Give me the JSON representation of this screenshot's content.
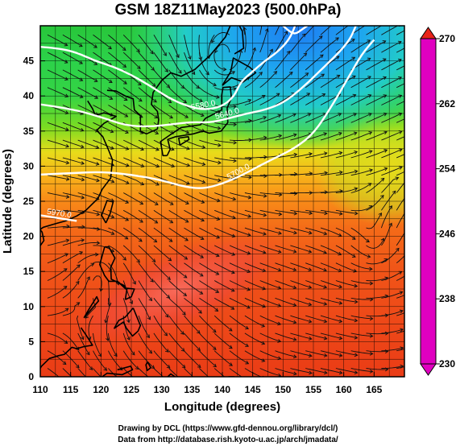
{
  "title": "GSM 18Z11May2023 (500.0hPa)",
  "xlabel": "Longitude (degrees)",
  "ylabel": "Latitude (degrees)",
  "footer": {
    "line1": "Drawing by DCL (https://www.gfd-dennou.org/library/dcl/)",
    "line2": "Data from http://database.rish.kyoto-u.ac.jp/arch/jmadata/"
  },
  "map": {
    "lon_range": [
      110,
      170
    ],
    "lat_range": [
      0,
      50
    ],
    "grid_step_deg": 2.5,
    "x_ticks": [
      "110",
      "115",
      "120",
      "125",
      "130",
      "135",
      "140",
      "145",
      "150",
      "155",
      "160",
      "165"
    ],
    "y_ticks": [
      "0",
      "5",
      "10",
      "15",
      "20",
      "25",
      "30",
      "35",
      "40",
      "45"
    ]
  },
  "colorbar": {
    "labels": [
      "270",
      "262",
      "254",
      "246",
      "238",
      "230"
    ],
    "range": [
      230,
      270
    ],
    "stops": [
      {
        "v": 230,
        "color": "#e000c0"
      },
      {
        "v": 234,
        "color": "#7a1ee6"
      },
      {
        "v": 238,
        "color": "#1a2fe0"
      },
      {
        "v": 242,
        "color": "#1890f0"
      },
      {
        "v": 246,
        "color": "#1cc6d8"
      },
      {
        "v": 250,
        "color": "#24d466"
      },
      {
        "v": 254,
        "color": "#3cd42c"
      },
      {
        "v": 258,
        "color": "#b8e21a"
      },
      {
        "v": 262,
        "color": "#f0d21a"
      },
      {
        "v": 266,
        "color": "#ff6a14"
      },
      {
        "v": 270,
        "color": "#e8241a"
      }
    ]
  },
  "contours": [
    {
      "label": "5970.0",
      "points": [
        [
          110,
          23.0
        ],
        [
          113,
          22.6
        ],
        [
          116,
          22.2
        ]
      ]
    },
    {
      "label": "5700.0",
      "points": [
        [
          110,
          28.8
        ],
        [
          115,
          29.0
        ],
        [
          120,
          29.2
        ],
        [
          125,
          28.8
        ],
        [
          130,
          28.0
        ],
        [
          134,
          27.0
        ],
        [
          137,
          26.8
        ],
        [
          140,
          27.5
        ],
        [
          143,
          28.6
        ],
        [
          146,
          30.0
        ],
        [
          149,
          31.3
        ],
        [
          152,
          32.6
        ],
        [
          155,
          34.6
        ],
        [
          158,
          38.5
        ],
        [
          161,
          43.0
        ],
        [
          163,
          46.0
        ],
        [
          165,
          48.0
        ]
      ]
    },
    {
      "label": "5640.0",
      "points": [
        [
          110,
          38.8
        ],
        [
          115,
          38.2
        ],
        [
          120,
          37.0
        ],
        [
          124,
          35.8
        ],
        [
          128,
          35.6
        ],
        [
          132,
          36.0
        ],
        [
          135,
          36.3
        ],
        [
          138,
          36.2
        ],
        [
          141,
          36.8
        ],
        [
          144,
          37.5
        ],
        [
          147,
          38.0
        ],
        [
          150,
          39.0
        ],
        [
          153,
          41.0
        ],
        [
          156,
          43.5
        ],
        [
          159,
          46.0
        ],
        [
          161,
          48.0
        ],
        [
          162,
          50.0
        ]
      ]
    },
    {
      "label": "5580.0",
      "points": [
        [
          110,
          47.0
        ],
        [
          113,
          46.8
        ],
        [
          116,
          46.2
        ],
        [
          119,
          45.0
        ],
        [
          122,
          44.2
        ],
        [
          125,
          43.0
        ],
        [
          128,
          41.5
        ],
        [
          131,
          39.8
        ],
        [
          134,
          38.6
        ],
        [
          137,
          38.0
        ],
        [
          140,
          38.5
        ],
        [
          142,
          40.0
        ],
        [
          143,
          42.0
        ],
        [
          145,
          43.5
        ],
        [
          147,
          45.0
        ],
        [
          149,
          46.2
        ],
        [
          151,
          48.0
        ],
        [
          152,
          50.0
        ]
      ]
    },
    {
      "label": "",
      "points": [
        [
          150,
          50.0
        ],
        [
          151,
          49.2
        ],
        [
          152,
          48.8
        ],
        [
          153,
          49.4
        ],
        [
          154,
          50.0
        ]
      ]
    }
  ],
  "coast": [
    [
      [
        121,
        40.8
      ],
      [
        122.5,
        40.7
      ],
      [
        124,
        40.0
      ],
      [
        125.3,
        39.6
      ],
      [
        125.5,
        38.0
      ],
      [
        126.5,
        37.2
      ],
      [
        126.5,
        35.0
      ],
      [
        127.5,
        34.6
      ],
      [
        129.3,
        35.3
      ],
      [
        129.5,
        36.6
      ],
      [
        129.3,
        37.8
      ],
      [
        128.3,
        38.8
      ],
      [
        128.6,
        40.5
      ],
      [
        130,
        42.2
      ],
      [
        131.5,
        43.3
      ],
      [
        133.2,
        42.8
      ],
      [
        135.5,
        43.8
      ],
      [
        138,
        45.8
      ],
      [
        140.5,
        48.4
      ],
      [
        141.3,
        50.0
      ]
    ],
    [
      [
        117.8,
        39.3
      ],
      [
        118.6,
        38.2
      ],
      [
        119.1,
        37.2
      ],
      [
        120.5,
        37.6
      ],
      [
        122.5,
        37.1
      ],
      [
        120.5,
        36.1
      ],
      [
        119.3,
        35.1
      ],
      [
        120.3,
        34.2
      ],
      [
        121.2,
        32.4
      ],
      [
        121.9,
        30.9
      ],
      [
        121.6,
        28.3
      ],
      [
        120.2,
        26.7
      ],
      [
        119.5,
        25.4
      ],
      [
        117.5,
        23.7
      ],
      [
        116,
        22.9
      ],
      [
        114.2,
        22.2
      ],
      [
        112.5,
        21.8
      ],
      [
        110.5,
        21.3
      ],
      [
        110,
        21.0
      ]
    ],
    [
      [
        130.9,
        31.5
      ],
      [
        131.4,
        32.4
      ],
      [
        131.0,
        33.8
      ],
      [
        132.3,
        34.2
      ],
      [
        133.8,
        34.4
      ],
      [
        135.2,
        34.6
      ],
      [
        136.8,
        35.0
      ],
      [
        137.8,
        34.7
      ],
      [
        139.8,
        35.0
      ],
      [
        140.9,
        36.2
      ],
      [
        140.8,
        38.3
      ],
      [
        141.5,
        39.7
      ],
      [
        141.3,
        41.3
      ],
      [
        140.1,
        41.2
      ],
      [
        139.9,
        40.1
      ],
      [
        139.9,
        38.0
      ],
      [
        137.2,
        36.8
      ],
      [
        136.4,
        35.9
      ],
      [
        133.2,
        35.5
      ],
      [
        131.3,
        34.4
      ],
      [
        129.8,
        33.5
      ],
      [
        130.2,
        31.5
      ],
      [
        130.9,
        31.5
      ]
    ],
    [
      [
        133.0,
        33.0
      ],
      [
        134.5,
        33.8
      ],
      [
        134.4,
        34.2
      ],
      [
        132.8,
        34.0
      ],
      [
        133.0,
        33.0
      ]
    ],
    [
      [
        140.0,
        41.5
      ],
      [
        141.5,
        42.6
      ],
      [
        143.4,
        42.0
      ],
      [
        145.5,
        43.3
      ],
      [
        144.5,
        44.1
      ],
      [
        141.8,
        45.4
      ],
      [
        141.4,
        43.5
      ],
      [
        140.0,
        41.5
      ]
    ],
    [
      [
        142.0,
        46.0
      ],
      [
        143.5,
        46.8
      ],
      [
        143.3,
        49.2
      ],
      [
        142.8,
        50.0
      ]
    ],
    [
      [
        120.8,
        21.9
      ],
      [
        120.1,
        23.0
      ],
      [
        121.0,
        25.1
      ],
      [
        122.0,
        24.9
      ],
      [
        121.5,
        23.2
      ],
      [
        120.8,
        21.9
      ]
    ],
    [
      [
        108.7,
        21.5
      ],
      [
        108.2,
        18.6
      ],
      [
        109.6,
        18.2
      ],
      [
        110.6,
        19.4
      ],
      [
        110.3,
        20.6
      ],
      [
        109.5,
        21.5
      ]
    ],
    [
      [
        120.6,
        18.5
      ],
      [
        121.3,
        18.5
      ],
      [
        122.3,
        16.9
      ],
      [
        121.6,
        15.6
      ],
      [
        121.7,
        13.9
      ],
      [
        123.8,
        13.0
      ],
      [
        124.1,
        12.5
      ],
      [
        122.7,
        13.6
      ],
      [
        121.3,
        13.6
      ],
      [
        120.6,
        14.4
      ],
      [
        119.8,
        16.0
      ],
      [
        120.6,
        18.5
      ]
    ],
    [
      [
        125.3,
        9.8
      ],
      [
        126.5,
        7.3
      ],
      [
        126.1,
        6.5
      ],
      [
        125.2,
        5.8
      ],
      [
        124.2,
        6.9
      ],
      [
        123.7,
        7.8
      ],
      [
        122.2,
        6.9
      ],
      [
        122.9,
        8.0
      ],
      [
        124.0,
        8.5
      ],
      [
        125.3,
        9.8
      ]
    ],
    [
      [
        117.2,
        8.4
      ],
      [
        118.8,
        10.0
      ],
      [
        119.6,
        10.8
      ],
      [
        119.3,
        11.4
      ],
      [
        118.0,
        9.6
      ],
      [
        117.2,
        8.4
      ]
    ],
    [
      [
        124.0,
        11.0
      ],
      [
        125.0,
        11.4
      ],
      [
        125.5,
        12.5
      ],
      [
        124.3,
        12.6
      ],
      [
        124.0,
        11.0
      ]
    ],
    [
      [
        116.7,
        7.0
      ],
      [
        117.5,
        6.0
      ],
      [
        118.6,
        4.5
      ],
      [
        117.2,
        4.3
      ],
      [
        116.0,
        4.0
      ],
      [
        115.2,
        4.2
      ],
      [
        114.0,
        3.2
      ],
      [
        113.0,
        3.0
      ],
      [
        111.5,
        2.6
      ],
      [
        110.2,
        1.5
      ],
      [
        110.0,
        1.2
      ]
    ],
    [
      [
        122.7,
        1.0
      ],
      [
        124.9,
        1.5
      ],
      [
        125.2,
        1.0
      ],
      [
        123.5,
        0.3
      ],
      [
        121.0,
        0.5
      ],
      [
        120.2,
        0.0
      ]
    ],
    [
      [
        127.7,
        2.1
      ],
      [
        128.2,
        1.3
      ],
      [
        127.6,
        0.9
      ],
      [
        127.4,
        1.7
      ],
      [
        127.7,
        2.1
      ]
    ],
    [
      [
        131.0,
        0.0
      ],
      [
        131.5,
        0.4
      ],
      [
        132.2,
        0.0
      ]
    ],
    [
      [
        141.0,
        0.0
      ],
      [
        142.0,
        0.0
      ]
    ]
  ]
}
